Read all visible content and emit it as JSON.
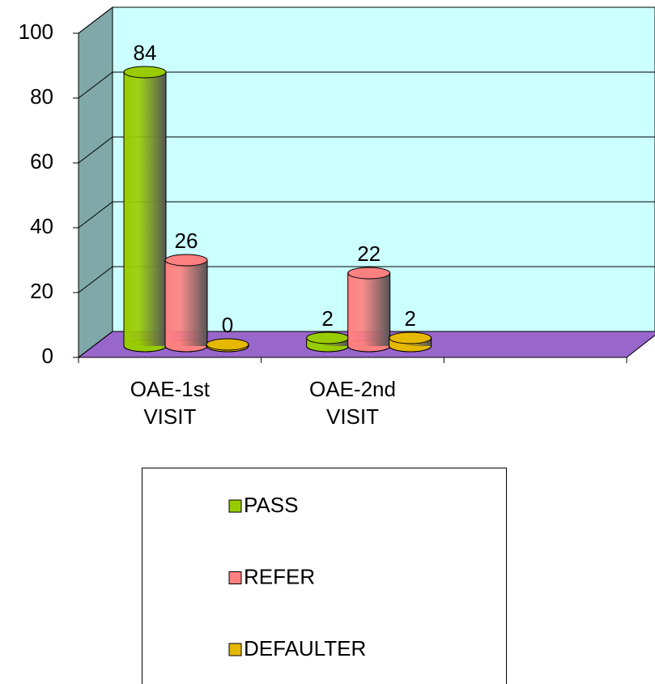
{
  "chart_data": {
    "type": "bar3d",
    "categories": [
      "OAE-1st VISIT",
      "OAE-2nd VISIT",
      null
    ],
    "series": [
      {
        "name": "PASS",
        "color": "#99cc00",
        "values": [
          84,
          2,
          null
        ]
      },
      {
        "name": "REFER",
        "color": "#ff8080",
        "values": [
          26,
          22,
          null
        ]
      },
      {
        "name": "DEFAULTER",
        "color": "#e6b800",
        "values": [
          0,
          2,
          null
        ]
      }
    ],
    "ylim": [
      0,
      100
    ],
    "yticks": [
      0,
      20,
      40,
      60,
      80,
      100
    ],
    "grid": true,
    "legend": "bottom"
  }
}
